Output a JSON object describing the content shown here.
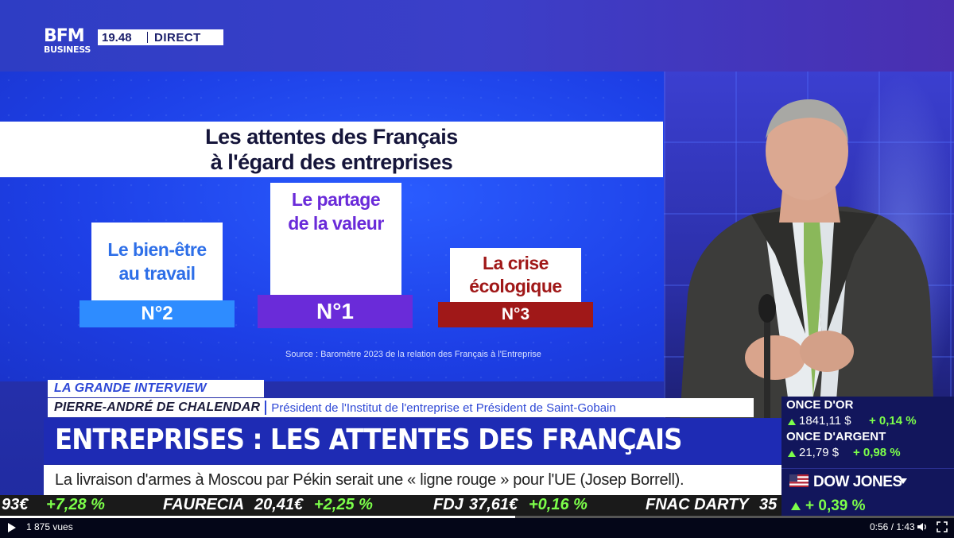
{
  "channel": {
    "logo_top": "BFM",
    "logo_bottom": "BUSINESS",
    "clock": "19.48",
    "live": "DIRECT"
  },
  "graphic": {
    "title_line1": "Les attentes des Français",
    "title_line2": "à l'égard des entreprises",
    "items": [
      {
        "label_line1": "Le bien-être",
        "label_line2": "au travail",
        "rank": "N°2",
        "color": "#2e8cff"
      },
      {
        "label_line1": "Le partage",
        "label_line2": "de la valeur",
        "rank": "N°1",
        "color": "#6a2bd9"
      },
      {
        "label_line1": "La crise",
        "label_line2": "écologique",
        "rank": "N°3",
        "color": "#a01818"
      }
    ],
    "source": "Source : Baromètre 2023 de la relation des Français à l'Entreprise"
  },
  "lower_third": {
    "segment": "LA GRANDE INTERVIEW",
    "guest_name": "PIERRE-ANDRÉ DE CHALENDAR",
    "guest_role": "Président de l'Institut de l'entreprise et Président de Saint-Gobain",
    "headline": "ENTREPRISES : LES ATTENTES DES FRANÇAIS",
    "ticker": "La livraison d'armes à Moscou par Pékin serait une « ligne rouge » pour l'UE (Josep Borrell)."
  },
  "stock_band": [
    {
      "text": "93€",
      "color": "#ffffff"
    },
    {
      "text": "+7,28 %",
      "color": "#7cff4a"
    },
    {
      "text": "FAURECIA",
      "color": "#ffffff"
    },
    {
      "text": "20,41€",
      "color": "#ffffff"
    },
    {
      "text": "+2,25 %",
      "color": "#7cff4a"
    },
    {
      "text": "FDJ",
      "color": "#ffffff"
    },
    {
      "text": "37,61€",
      "color": "#ffffff"
    },
    {
      "text": "+0,16 %",
      "color": "#7cff4a"
    },
    {
      "text": "FNAC DARTY",
      "color": "#ffffff"
    },
    {
      "text": "35",
      "color": "#ffffff"
    }
  ],
  "markets": {
    "gold_label": "ONCE D'OR",
    "gold_value": "1841,11 $",
    "gold_change": "+ 0,14 %",
    "silver_label": "ONCE D'ARGENT",
    "silver_value": "21,79 $",
    "silver_change": "+ 0,98 %",
    "index_label": "DOW JONES",
    "index_change": "+ 0,39 %",
    "up_color": "#7cff4a"
  },
  "player": {
    "views": "1 875 vues",
    "time": "0:56 / 1:43",
    "progress": 0.54
  }
}
